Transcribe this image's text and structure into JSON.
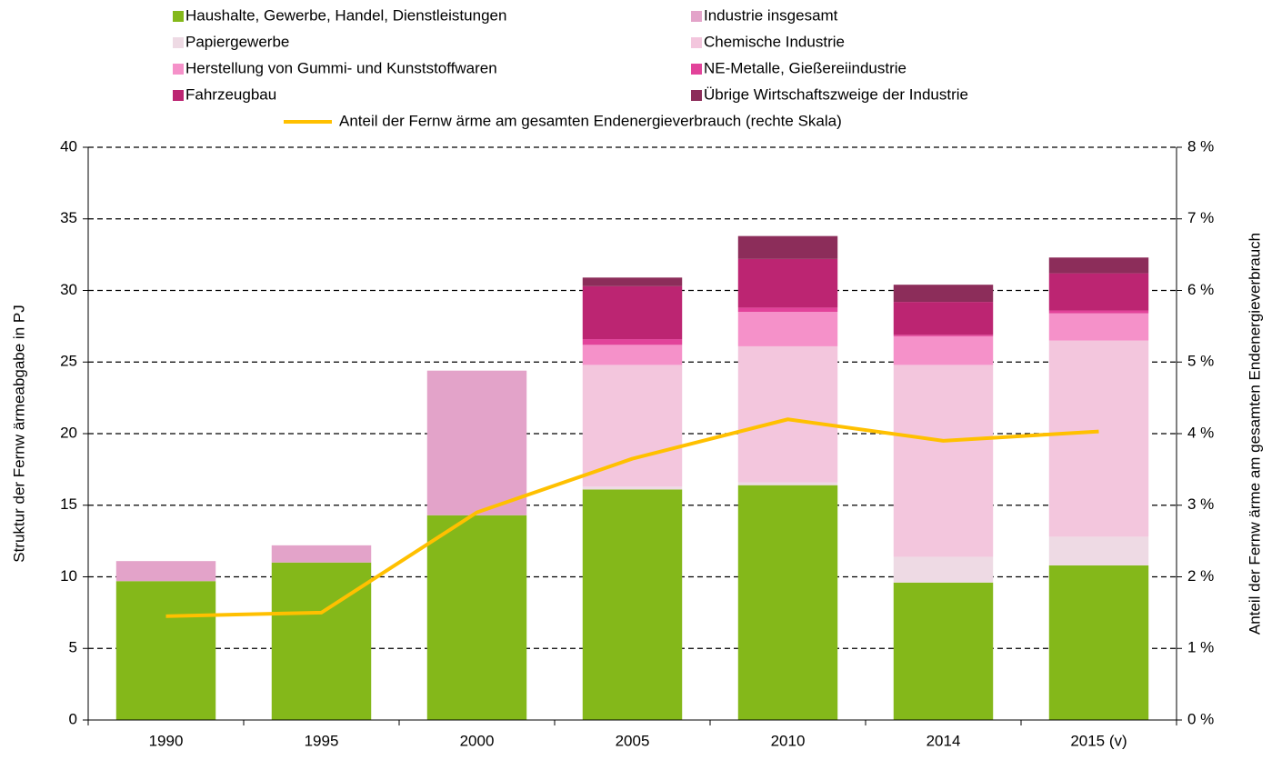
{
  "chart_data": {
    "type": "bar",
    "categories": [
      "1990",
      "1995",
      "2000",
      "2005",
      "2010",
      "2014",
      "2015 (v)"
    ],
    "series": [
      {
        "name": "Haushalte, Gewerbe, Handel, Dienstleistungen",
        "color": "#84b81a",
        "values": [
          9.7,
          11.0,
          14.3,
          16.1,
          16.4,
          9.6,
          10.8
        ]
      },
      {
        "name": "Industrie insgesamt",
        "color": "#e3a3c9",
        "values": [
          1.4,
          1.2,
          10.1,
          null,
          null,
          null,
          null
        ]
      },
      {
        "name": "Papiergewerbe",
        "color": "#eedae4",
        "values": [
          null,
          null,
          null,
          0.2,
          0.2,
          1.8,
          2.0
        ]
      },
      {
        "name": "Chemische Industrie",
        "color": "#f3c6dd",
        "values": [
          null,
          null,
          null,
          8.5,
          9.5,
          13.4,
          13.7
        ]
      },
      {
        "name": "Herstellung von Gummi- und Kunststoffwaren",
        "color": "#f591c9",
        "values": [
          null,
          null,
          null,
          1.4,
          2.4,
          2.0,
          1.9
        ]
      },
      {
        "name": "NE-Metalle, Gießereiindustrie",
        "color": "#e2439a",
        "values": [
          null,
          null,
          null,
          0.4,
          0.3,
          0.1,
          0.2
        ]
      },
      {
        "name": "Fahrzeugbau",
        "color": "#bc2572",
        "values": [
          null,
          null,
          null,
          3.7,
          3.4,
          2.3,
          2.6
        ]
      },
      {
        "name": "Übrige Wirtschaftszweige der Industrie",
        "color": "#8c2d5a",
        "values": [
          null,
          null,
          null,
          0.6,
          1.6,
          1.2,
          1.1
        ]
      },
      {
        "name": "Anteil der Fernw ärme am gesamten Endenergieverbrauch (rechte Skala)",
        "color": "#ffc000",
        "type": "line",
        "axis": "y2",
        "values": [
          1.45,
          1.5,
          2.9,
          3.65,
          4.2,
          3.9,
          4.03
        ]
      }
    ],
    "y_label": "Struktur der Fernw ärmeabgabe in PJ",
    "y2_label": "Anteil der Fernw ärme am gesamten Endenergieverbrauch",
    "ylim": [
      0,
      40
    ],
    "yticks": [
      0,
      5,
      10,
      15,
      20,
      25,
      30,
      35,
      40
    ],
    "y2lim": [
      0,
      8
    ],
    "y2ticks": [
      {
        "value": 0,
        "label": "0 %"
      },
      {
        "value": 1,
        "label": "1 %"
      },
      {
        "value": 2,
        "label": "2 %"
      },
      {
        "value": 3,
        "label": "3 %"
      },
      {
        "value": 4,
        "label": "4 %"
      },
      {
        "value": 5,
        "label": "5 %"
      },
      {
        "value": 6,
        "label": "6 %"
      },
      {
        "value": 7,
        "label": "7 %"
      },
      {
        "value": 8,
        "label": "8 %"
      }
    ],
    "grid": true,
    "legend": "top"
  }
}
